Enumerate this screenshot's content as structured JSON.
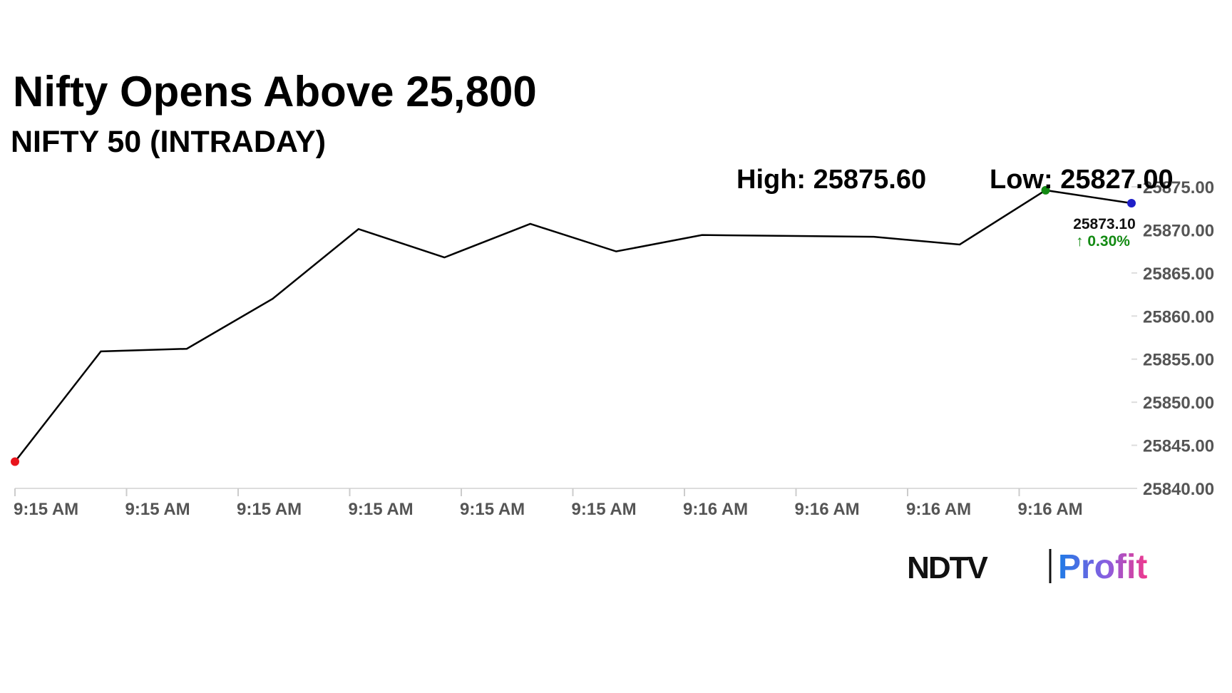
{
  "header": {
    "title": "Nifty Opens Above 25,800",
    "subtitle": "NIFTY 50 (INTRADAY)",
    "high": "High: 25875.60",
    "low": "Low: 25827.00"
  },
  "chart_data": {
    "type": "line",
    "x_labels": [
      "9:15 AM",
      "9:15 AM",
      "9:15 AM",
      "9:15 AM",
      "9:15 AM",
      "9:15 AM",
      "9:16 AM",
      "9:16 AM",
      "9:16 AM",
      "9:16 AM"
    ],
    "series": [
      {
        "color": "#000000",
        "values": [
          25843.1,
          25855.9,
          25856.2,
          25862.0,
          25870.1,
          25866.8,
          25870.7,
          25867.5,
          25869.4,
          25869.3,
          25869.2,
          25868.3,
          25874.6,
          25873.1
        ],
        "value_labels": [
          null,
          null,
          null,
          null,
          null,
          null,
          null,
          null,
          null,
          null,
          null,
          null,
          null,
          "25873.10"
        ]
      }
    ],
    "change_label": "↑ 0.30%",
    "change_color": "#138a13",
    "first_color": "#e8141c",
    "high_color": "#138a13",
    "last_color": "#1f1fc8",
    "ylim": [
      25840,
      25875
    ],
    "yticks": [
      {
        "value": 25840,
        "label": "25840.00"
      },
      {
        "value": 25845,
        "label": "25845.00"
      },
      {
        "value": 25850,
        "label": "25850.00"
      },
      {
        "value": 25855,
        "label": "25855.00"
      },
      {
        "value": 25860,
        "label": "25860.00"
      },
      {
        "value": 25865,
        "label": "25865.00"
      },
      {
        "value": 25870,
        "label": "25870.00"
      },
      {
        "value": 25875,
        "label": "25875.00"
      }
    ]
  },
  "logo": {
    "left": "NDTV",
    "right": "Profit"
  }
}
